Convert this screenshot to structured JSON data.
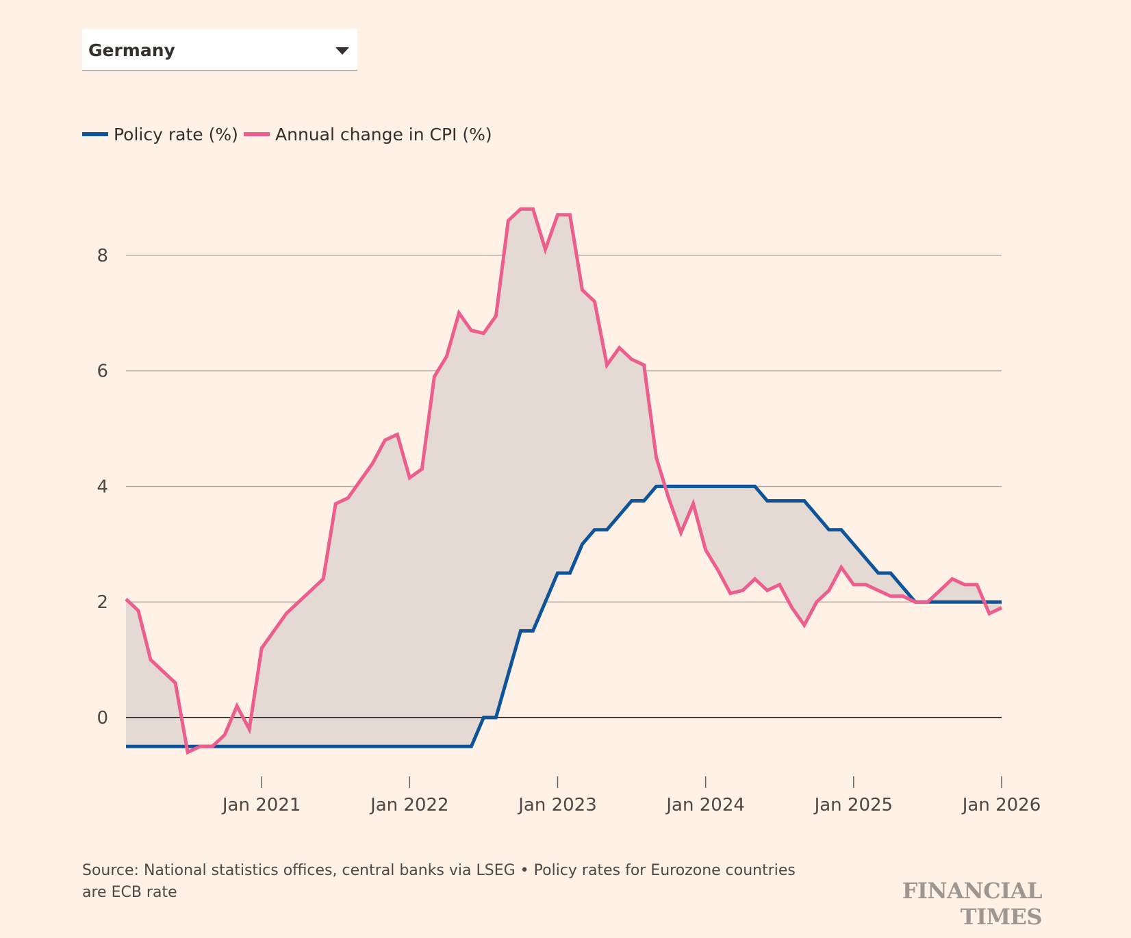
{
  "selector": {
    "value": "Germany"
  },
  "legend": {
    "policy_label": "Policy rate (%)",
    "cpi_label": "Annual change in CPI (%)"
  },
  "colors": {
    "policy": "#0F5499",
    "cpi": "#EB5E8D",
    "fill": "#E5DAD3",
    "grid": "#B6ADA6",
    "zero_line": "#33302E",
    "background": "#FFF1E5"
  },
  "footer": {
    "source": "Source: National statistics offices, central banks via LSEG • Policy rates for Eurozone countries are ECB rate",
    "brand": "FINANCIAL TIMES"
  },
  "chart_data": {
    "type": "line",
    "xlabel": "",
    "ylabel": "",
    "ylim": [
      -0.9,
      9.1
    ],
    "xlim": [
      "2020-02",
      "2026-01"
    ],
    "y_ticks": [
      0,
      2,
      4,
      6,
      8
    ],
    "x_ticks": [
      {
        "date": "2021-01",
        "label": "Jan 2021"
      },
      {
        "date": "2022-01",
        "label": "Jan 2022"
      },
      {
        "date": "2023-01",
        "label": "Jan 2023"
      },
      {
        "date": "2024-01",
        "label": "Jan 2024"
      },
      {
        "date": "2025-01",
        "label": "Jan 2025"
      },
      {
        "date": "2026-01",
        "label": "Jan 2026"
      }
    ],
    "grid": true,
    "legend_position": "top-left",
    "dates": [
      "2020-02",
      "2020-03",
      "2020-04",
      "2020-05",
      "2020-06",
      "2020-07",
      "2020-08",
      "2020-09",
      "2020-10",
      "2020-11",
      "2020-12",
      "2021-01",
      "2021-02",
      "2021-03",
      "2021-04",
      "2021-05",
      "2021-06",
      "2021-07",
      "2021-08",
      "2021-09",
      "2021-10",
      "2021-11",
      "2021-12",
      "2022-01",
      "2022-02",
      "2022-03",
      "2022-04",
      "2022-05",
      "2022-06",
      "2022-07",
      "2022-08",
      "2022-09",
      "2022-10",
      "2022-11",
      "2022-12",
      "2023-01",
      "2023-02",
      "2023-03",
      "2023-04",
      "2023-05",
      "2023-06",
      "2023-07",
      "2023-08",
      "2023-09",
      "2023-10",
      "2023-11",
      "2023-12",
      "2024-01",
      "2024-02",
      "2024-03",
      "2024-04",
      "2024-05",
      "2024-06",
      "2024-07",
      "2024-08",
      "2024-09",
      "2024-10",
      "2024-11",
      "2024-12",
      "2025-01",
      "2025-02",
      "2025-03",
      "2025-04",
      "2025-05",
      "2025-06",
      "2025-07",
      "2025-08",
      "2025-09",
      "2025-10",
      "2025-11",
      "2025-12",
      "2026-01"
    ],
    "series": [
      {
        "name": "Policy rate (%)",
        "values": [
          -0.5,
          -0.5,
          -0.5,
          -0.5,
          -0.5,
          -0.5,
          -0.5,
          -0.5,
          -0.5,
          -0.5,
          -0.5,
          -0.5,
          -0.5,
          -0.5,
          -0.5,
          -0.5,
          -0.5,
          -0.5,
          -0.5,
          -0.5,
          -0.5,
          -0.5,
          -0.5,
          -0.5,
          -0.5,
          -0.5,
          -0.5,
          -0.5,
          -0.5,
          0,
          0,
          0.75,
          1.5,
          1.5,
          2.0,
          2.5,
          2.5,
          3.0,
          3.25,
          3.25,
          3.5,
          3.75,
          3.75,
          4.0,
          4.0,
          4.0,
          4.0,
          4.0,
          4.0,
          4.0,
          4.0,
          4.0,
          3.75,
          3.75,
          3.75,
          3.75,
          3.5,
          3.25,
          3.25,
          3.0,
          2.75,
          2.5,
          2.5,
          2.25,
          2.0,
          2.0,
          2.0,
          2.0,
          2.0,
          2.0,
          2.0,
          2.0
        ]
      },
      {
        "name": "Annual change in CPI (%)",
        "values": [
          2.05,
          1.85,
          1.0,
          0.8,
          0.6,
          -0.6,
          -0.5,
          -0.5,
          -0.3,
          0.2,
          -0.2,
          1.2,
          1.5,
          1.8,
          2.0,
          2.2,
          2.4,
          3.7,
          3.8,
          4.1,
          4.4,
          4.8,
          4.9,
          4.15,
          4.3,
          5.9,
          6.25,
          7.0,
          6.7,
          6.65,
          6.95,
          8.6,
          8.8,
          8.8,
          8.1,
          8.7,
          8.7,
          7.4,
          7.2,
          6.1,
          6.4,
          6.2,
          6.1,
          4.5,
          3.8,
          3.2,
          3.7,
          2.9,
          2.55,
          2.15,
          2.2,
          2.4,
          2.2,
          2.3,
          1.9,
          1.6,
          2.0,
          2.2,
          2.6,
          2.3,
          2.3,
          2.2,
          2.1,
          2.1,
          2.0,
          2.0,
          2.2,
          2.4,
          2.3,
          2.3,
          1.8,
          1.9
        ]
      }
    ]
  }
}
